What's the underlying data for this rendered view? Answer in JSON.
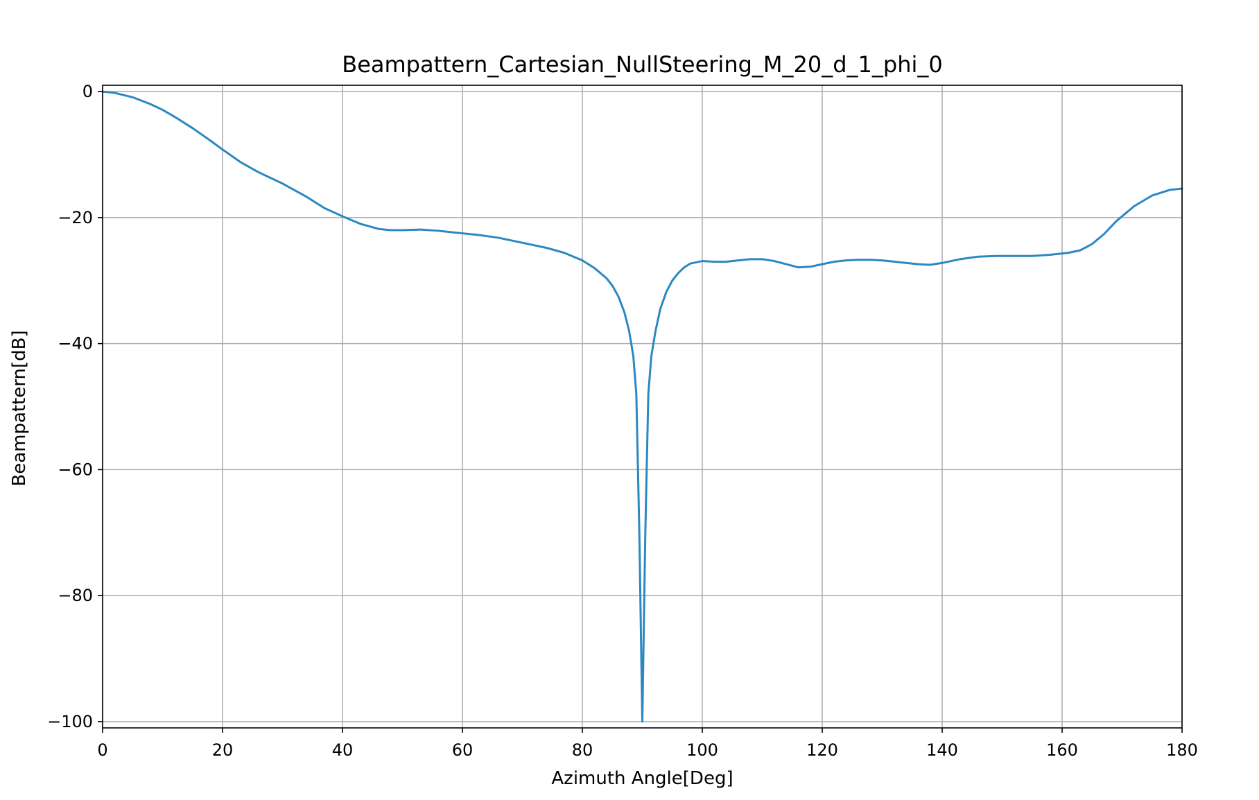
{
  "chart_data": {
    "type": "line",
    "title": "Beampattern_Cartesian_NullSteering_M_20_d_1_phi_0",
    "xlabel": "Azimuth Angle[Deg]",
    "ylabel": "Beampattern[dB]",
    "xlim": [
      0,
      180
    ],
    "ylim": [
      -101,
      1
    ],
    "xticks": [
      0,
      20,
      40,
      60,
      80,
      100,
      120,
      140,
      160,
      180
    ],
    "xtick_labels": [
      "0",
      "20",
      "40",
      "60",
      "80",
      "100",
      "120",
      "140",
      "160",
      "180"
    ],
    "yticks": [
      0,
      -20,
      -40,
      -60,
      -80,
      -100
    ],
    "ytick_labels": [
      "0",
      "−20",
      "−40",
      "−60",
      "−80",
      "−100"
    ],
    "grid": true,
    "line_color": "#2b88c0",
    "series": [
      {
        "x": [
          0,
          2,
          5,
          8,
          10,
          12,
          15,
          18,
          20,
          23,
          26,
          30,
          34,
          37,
          40,
          43,
          46,
          48,
          50,
          53,
          56,
          60,
          63,
          66,
          70,
          74,
          77,
          80,
          82,
          84,
          85,
          86,
          87,
          87.8,
          88.5,
          89,
          89.5,
          90,
          90.5,
          91,
          91.5,
          92.2,
          93,
          94,
          95,
          96,
          97,
          98,
          100,
          102,
          104,
          106,
          108,
          110,
          112,
          114,
          116,
          118,
          120,
          122,
          124,
          126,
          128,
          130,
          133,
          136,
          138,
          140,
          143,
          146,
          149,
          152,
          155,
          158,
          161,
          163,
          165,
          167,
          169,
          172,
          175,
          178,
          180
        ],
        "y": [
          0,
          -0.2,
          -0.9,
          -2.0,
          -2.9,
          -4.0,
          -5.8,
          -7.8,
          -9.2,
          -11.2,
          -12.8,
          -14.6,
          -16.7,
          -18.5,
          -19.8,
          -21.0,
          -21.8,
          -22.0,
          -22.0,
          -21.9,
          -22.1,
          -22.5,
          -22.8,
          -23.2,
          -24.0,
          -24.8,
          -25.6,
          -26.8,
          -28.0,
          -29.6,
          -30.8,
          -32.5,
          -35.0,
          -38.0,
          -42.0,
          -48.0,
          -70.0,
          -100.0,
          -70.0,
          -48.0,
          -42.0,
          -38.0,
          -34.5,
          -31.8,
          -30.0,
          -28.8,
          -27.9,
          -27.3,
          -26.9,
          -27.0,
          -27.0,
          -26.8,
          -26.6,
          -26.6,
          -26.9,
          -27.4,
          -27.9,
          -27.8,
          -27.4,
          -27.0,
          -26.8,
          -26.7,
          -26.7,
          -26.8,
          -27.1,
          -27.4,
          -27.5,
          -27.2,
          -26.6,
          -26.2,
          -26.1,
          -26.1,
          -26.1,
          -25.9,
          -25.6,
          -25.2,
          -24.2,
          -22.6,
          -20.6,
          -18.2,
          -16.5,
          -15.6,
          -15.4
        ]
      }
    ]
  }
}
